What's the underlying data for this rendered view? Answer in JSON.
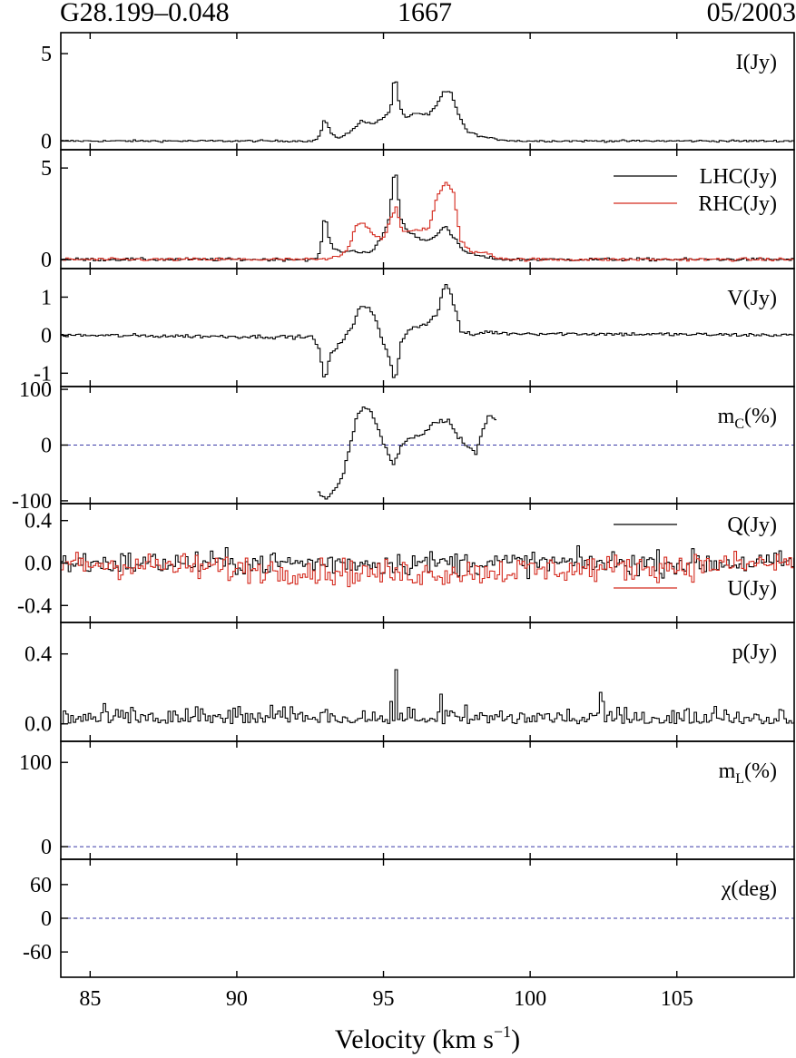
{
  "header": {
    "source": "G28.199–0.048",
    "frequency": "1667",
    "date": "05/2003"
  },
  "chart_data": {
    "type": "line",
    "xlabel": "Velocity (km s",
    "xlabel_sup": "−1",
    "xlabel_end": ")",
    "xlim": [
      84,
      109
    ],
    "xticks": [
      85,
      90,
      95,
      100,
      105
    ],
    "colors": {
      "black": "#000000",
      "red": "#d42a1e",
      "reference": "#3a3aa8"
    },
    "panels": [
      {
        "id": "I",
        "label": "I(Jy)",
        "ylim": [
          -0.5,
          6.2
        ],
        "yticks": [
          {
            "v": 5,
            "t": "5"
          },
          {
            "v": 0,
            "t": "0"
          }
        ],
        "baseline_ref": null,
        "series": [
          {
            "name": "",
            "color": "black",
            "noise": 0.04,
            "points": [
              [
                84,
                0
              ],
              [
                92.6,
                0
              ],
              [
                92.8,
                0.35
              ],
              [
                92.95,
                1.3
              ],
              [
                93.2,
                0.35
              ],
              [
                93.4,
                0.15
              ],
              [
                93.9,
                0.6
              ],
              [
                94.2,
                1.15
              ],
              [
                94.6,
                1.0
              ],
              [
                94.95,
                1.3
              ],
              [
                95.2,
                1.8
              ],
              [
                95.35,
                3.9
              ],
              [
                95.5,
                2.0
              ],
              [
                95.7,
                1.3
              ],
              [
                96.0,
                1.6
              ],
              [
                96.5,
                1.5
              ],
              [
                96.8,
                2.1
              ],
              [
                97.0,
                2.8
              ],
              [
                97.25,
                2.8
              ],
              [
                97.5,
                1.6
              ],
              [
                97.8,
                0.55
              ],
              [
                98.3,
                0.25
              ],
              [
                98.8,
                0.1
              ],
              [
                99.5,
                0
              ],
              [
                109,
                0
              ]
            ]
          }
        ]
      },
      {
        "id": "LR",
        "label": "",
        "ylim": [
          -0.5,
          6.0
        ],
        "yticks": [
          {
            "v": 5,
            "t": "5"
          },
          {
            "v": 0,
            "t": "0"
          }
        ],
        "baseline_ref": null,
        "legend": [
          {
            "text": "LHC(Jy)",
            "color": "black"
          },
          {
            "text": "RHC(Jy)",
            "color": "red"
          }
        ],
        "series": [
          {
            "name": "LHC(Jy)",
            "color": "black",
            "noise": 0.06,
            "points": [
              [
                84,
                0
              ],
              [
                92.7,
                0
              ],
              [
                92.85,
                1.0
              ],
              [
                92.95,
                2.5
              ],
              [
                93.15,
                0.8
              ],
              [
                93.4,
                0.45
              ],
              [
                94.0,
                0.45
              ],
              [
                94.3,
                0.4
              ],
              [
                94.6,
                0.45
              ],
              [
                94.9,
                1.2
              ],
              [
                95.15,
                2.2
              ],
              [
                95.35,
                5.2
              ],
              [
                95.55,
                2.2
              ],
              [
                95.8,
                1.5
              ],
              [
                96.4,
                1.0
              ],
              [
                96.8,
                1.4
              ],
              [
                97.05,
                1.8
              ],
              [
                97.3,
                1.3
              ],
              [
                97.7,
                0.45
              ],
              [
                98.3,
                0.15
              ],
              [
                99,
                0
              ],
              [
                109,
                0
              ]
            ]
          },
          {
            "name": "RHC(Jy)",
            "color": "red",
            "noise": 0.06,
            "points": [
              [
                84,
                0
              ],
              [
                93.0,
                0
              ],
              [
                93.5,
                0.2
              ],
              [
                93.8,
                0.7
              ],
              [
                94.0,
                1.9
              ],
              [
                94.3,
                2.0
              ],
              [
                94.6,
                1.4
              ],
              [
                94.95,
                1.1
              ],
              [
                95.2,
                2.2
              ],
              [
                95.4,
                2.8
              ],
              [
                95.6,
                1.5
              ],
              [
                96.0,
                1.6
              ],
              [
                96.5,
                1.7
              ],
              [
                96.8,
                3.5
              ],
              [
                97.1,
                4.2
              ],
              [
                97.35,
                3.6
              ],
              [
                97.6,
                1.0
              ],
              [
                98.0,
                0.35
              ],
              [
                98.5,
                0.4
              ],
              [
                98.8,
                0.1
              ],
              [
                99.5,
                0
              ],
              [
                109,
                0
              ]
            ]
          }
        ]
      },
      {
        "id": "V",
        "label": "V(Jy)",
        "ylim": [
          -1.35,
          1.75
        ],
        "yticks": [
          {
            "v": 1,
            "t": "1"
          },
          {
            "v": 0,
            "t": "0"
          },
          {
            "v": -1,
            "t": "-1"
          }
        ],
        "baseline_ref": null,
        "series": [
          {
            "name": "",
            "color": "black",
            "noise": 0.035,
            "points": [
              [
                84,
                0
              ],
              [
                92.6,
                -0.05
              ],
              [
                92.8,
                -0.5
              ],
              [
                92.95,
                -1.25
              ],
              [
                93.15,
                -0.5
              ],
              [
                93.4,
                -0.3
              ],
              [
                93.9,
                0.2
              ],
              [
                94.1,
                0.7
              ],
              [
                94.3,
                0.8
              ],
              [
                94.6,
                0.6
              ],
              [
                94.9,
                -0.1
              ],
              [
                95.15,
                -0.6
              ],
              [
                95.35,
                -1.25
              ],
              [
                95.55,
                -0.2
              ],
              [
                95.8,
                0.15
              ],
              [
                96.4,
                0.3
              ],
              [
                96.8,
                0.55
              ],
              [
                97.05,
                1.4
              ],
              [
                97.25,
                1.1
              ],
              [
                97.6,
                0.1
              ],
              [
                98.0,
                0
              ],
              [
                98.5,
                0.1
              ],
              [
                98.9,
                0.05
              ],
              [
                109,
                0
              ]
            ]
          }
        ]
      },
      {
        "id": "mC",
        "label": "m",
        "label_sub": "C",
        "label_end": "(%)",
        "ylim": [
          -105,
          105
        ],
        "yticks": [
          {
            "v": 100,
            "t": "100"
          },
          {
            "v": 0,
            "t": "0"
          },
          {
            "v": -100,
            "t": "-100"
          }
        ],
        "baseline_ref": 0,
        "series": [
          {
            "name": "",
            "color": "black",
            "noise": 3,
            "points": [
              [
                92.75,
                -85
              ],
              [
                92.95,
                -98
              ],
              [
                93.2,
                -85
              ],
              [
                93.5,
                -65
              ],
              [
                93.8,
                -10
              ],
              [
                94.05,
                55
              ],
              [
                94.3,
                68
              ],
              [
                94.55,
                62
              ],
              [
                94.8,
                25
              ],
              [
                95.05,
                -8
              ],
              [
                95.3,
                -35
              ],
              [
                95.55,
                -5
              ],
              [
                95.8,
                10
              ],
              [
                96.2,
                15
              ],
              [
                96.6,
                35
              ],
              [
                96.9,
                45
              ],
              [
                97.2,
                42
              ],
              [
                97.5,
                15
              ],
              [
                97.8,
                0
              ],
              [
                98.1,
                -15
              ],
              [
                98.3,
                20
              ],
              [
                98.55,
                55
              ],
              [
                98.75,
                45
              ],
              [
                98.85,
                45
              ]
            ]
          }
        ]
      },
      {
        "id": "QU",
        "label": "",
        "ylim": [
          -0.56,
          0.56
        ],
        "yticks": [
          {
            "v": 0.4,
            "t": "0.4"
          },
          {
            "v": 0,
            "t": "0.0"
          },
          {
            "v": -0.4,
            "t": "-0.4"
          }
        ],
        "baseline_ref": null,
        "legend": [
          {
            "text": "Q(Jy)",
            "color": "black"
          },
          {
            "text": "U(Jy)",
            "color": "red"
          }
        ],
        "series": [
          {
            "name": "Q(Jy)",
            "color": "black",
            "noise": 0.08,
            "points": [
              [
                84,
                0
              ],
              [
                109,
                0
              ]
            ]
          },
          {
            "name": "U(Jy)",
            "color": "red",
            "noise": 0.09,
            "points": [
              [
                84,
                0
              ],
              [
                95.4,
                -0.1
              ],
              [
                109,
                0
              ]
            ]
          }
        ]
      },
      {
        "id": "p",
        "label": "p(Jy)",
        "ylim": [
          -0.1,
          0.58
        ],
        "yticks": [
          {
            "v": 0.4,
            "t": "0.4"
          },
          {
            "v": 0,
            "t": "0.0"
          }
        ],
        "baseline_ref": null,
        "series": [
          {
            "name": "",
            "color": "black",
            "noise": 0.05,
            "abs": true,
            "points": [
              [
                84,
                0.03
              ],
              [
                109,
                0.03
              ]
            ],
            "spikes": [
              [
                95.35,
                0.31
              ],
              [
                96.9,
                0.17
              ],
              [
                102.4,
                0.18
              ]
            ]
          }
        ]
      },
      {
        "id": "mL",
        "label": "m",
        "label_sub": "L",
        "label_end": "(%)",
        "ylim": [
          -15,
          125
        ],
        "yticks": [
          {
            "v": 100,
            "t": "100"
          },
          {
            "v": 0,
            "t": "0"
          }
        ],
        "baseline_ref": 0,
        "series": []
      },
      {
        "id": "chi",
        "label": "χ(deg)",
        "ylim": [
          -105,
          105
        ],
        "yticks": [
          {
            "v": 60,
            "t": "60"
          },
          {
            "v": 0,
            "t": "0"
          },
          {
            "v": -60,
            "t": "-60"
          }
        ],
        "baseline_ref": 0,
        "series": []
      }
    ]
  }
}
